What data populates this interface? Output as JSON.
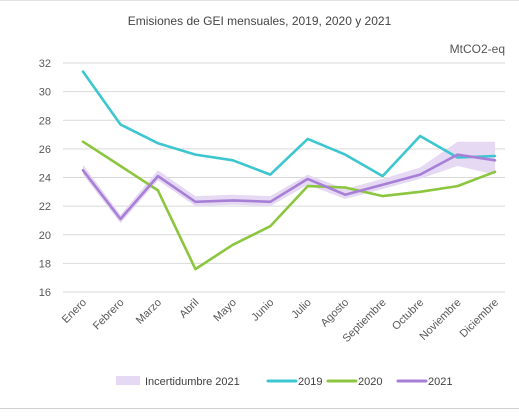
{
  "chart_data": {
    "type": "line",
    "title": "Emisiones de GEI mensuales, 2019, 2020 y 2021",
    "unit": "MtCO2-eq",
    "xlabel": "",
    "ylabel": "",
    "categories": [
      "Enero",
      "Febrero",
      "Marzo",
      "Abril",
      "Mayo",
      "Junio",
      "Julio",
      "Agosto",
      "Septiembre",
      "Octubre",
      "Noviembre",
      "Diciembre"
    ],
    "ylim": [
      16,
      32
    ],
    "yticks": [
      16,
      18,
      20,
      22,
      24,
      26,
      28,
      30,
      32
    ],
    "grid": true,
    "legend_position": "bottom",
    "band": {
      "name": "Incertidumbre 2021",
      "color": "#e6d9f3",
      "lower": [
        24.2,
        20.8,
        23.8,
        22.0,
        22.1,
        22.0,
        23.5,
        22.5,
        23.2,
        23.9,
        24.8,
        24.2
      ],
      "upper": [
        24.9,
        21.4,
        24.5,
        22.7,
        22.8,
        22.7,
        24.2,
        23.2,
        23.9,
        24.7,
        26.5,
        26.5
      ]
    },
    "series": [
      {
        "name": "2019",
        "color": "#3cc6cf",
        "values": [
          31.4,
          27.7,
          26.4,
          25.6,
          25.2,
          24.2,
          26.7,
          25.6,
          24.1,
          26.9,
          25.4,
          25.5
        ]
      },
      {
        "name": "2020",
        "color": "#8cc63f",
        "values": [
          26.5,
          24.8,
          23.1,
          17.6,
          19.3,
          20.6,
          23.4,
          23.3,
          22.7,
          23.0,
          23.4,
          24.4
        ]
      },
      {
        "name": "2021",
        "color": "#a87fd6",
        "values": [
          24.5,
          21.1,
          24.1,
          22.3,
          22.4,
          22.3,
          23.9,
          22.8,
          23.5,
          24.2,
          25.6,
          25.2
        ]
      }
    ]
  }
}
